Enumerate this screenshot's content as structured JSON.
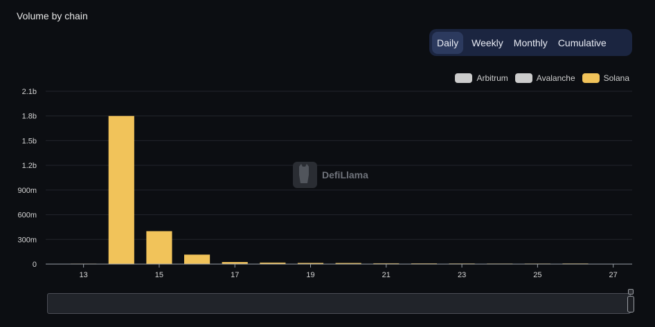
{
  "title": "Volume by chain",
  "tabs": [
    "Daily",
    "Weekly",
    "Monthly",
    "Cumulative"
  ],
  "active_tab": "Daily",
  "legend": [
    {
      "name": "Arbitrum",
      "color": "#cccccc"
    },
    {
      "name": "Avalanche",
      "color": "#cccccc"
    },
    {
      "name": "Solana",
      "color": "#f1c35a"
    }
  ],
  "watermark": "DefiLlama",
  "chart_data": {
    "type": "bar",
    "title": "Volume by chain",
    "x": [
      13,
      14,
      15,
      16,
      17,
      18,
      19,
      20,
      21,
      22,
      23,
      24,
      25,
      26
    ],
    "x_ticks": [
      "13",
      "15",
      "17",
      "19",
      "21",
      "23",
      "25",
      "27"
    ],
    "y_ticks": [
      "0",
      "300m",
      "600m",
      "900m",
      "1.2b",
      "1.5b",
      "1.8b",
      "2.1b"
    ],
    "ylim": [
      0,
      2100000000
    ],
    "xlim": [
      12,
      27.5
    ],
    "series": [
      {
        "name": "Solana",
        "color": "#f1c35a",
        "values": [
          5000000,
          1800000000,
          400000000,
          115000000,
          25000000,
          18000000,
          14000000,
          13000000,
          9000000,
          8000000,
          7000000,
          6000000,
          6000000,
          7000000
        ]
      }
    ],
    "grid": true,
    "legend_position": "top-right",
    "stacked": true
  }
}
